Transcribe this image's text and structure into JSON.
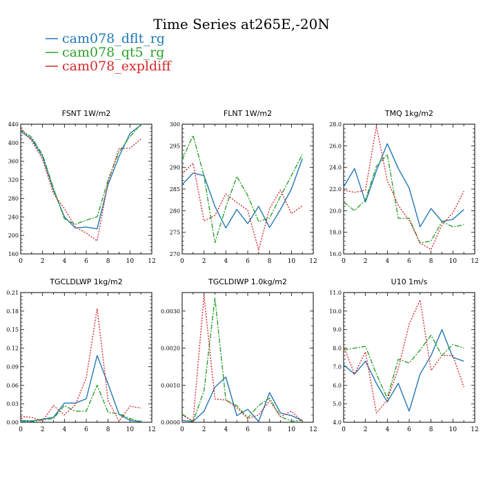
{
  "figure": {
    "title": "Time Series at265E,-20N",
    "legend": [
      {
        "name": "cam078_dflt_rg",
        "color": "#1f77b4",
        "dash": "solid"
      },
      {
        "name": "cam078_qt5_rg",
        "color": "#2ca02c",
        "dash": "dashdot"
      },
      {
        "name": "cam078_expldiff",
        "color": "#d62728",
        "dash": "dotted"
      }
    ]
  },
  "chart_data": [
    {
      "type": "line",
      "title": "FSNT   1W/m2",
      "x": [
        0,
        1,
        2,
        3,
        4,
        5,
        6,
        7,
        8,
        9,
        10,
        11
      ],
      "xlim": [
        0,
        12
      ],
      "xticks": [
        "0",
        "2",
        "4",
        "6",
        "8",
        "10",
        "12"
      ],
      "ylim": [
        160,
        440
      ],
      "yticks": [
        "160",
        "200",
        "240",
        "280",
        "320",
        "360",
        "400",
        "440"
      ],
      "series": [
        {
          "name": "cam078_dflt_rg",
          "values": [
            424,
            408,
            370,
            298,
            240,
            216,
            218,
            214,
            310,
            370,
            420,
            438
          ]
        },
        {
          "name": "cam078_qt5_rg",
          "values": [
            428,
            412,
            374,
            302,
            236,
            224,
            233,
            240,
            320,
            380,
            413,
            440
          ]
        },
        {
          "name": "cam078_expldiff",
          "values": [
            432,
            404,
            364,
            290,
            258,
            218,
            205,
            188,
            315,
            388,
            388,
            408
          ]
        }
      ]
    },
    {
      "type": "line",
      "title": "FLNT   1W/m2",
      "x": [
        0,
        1,
        2,
        3,
        4,
        5,
        6,
        7,
        8,
        9,
        10,
        11
      ],
      "xlim": [
        0,
        12
      ],
      "xticks": [
        "0",
        "2",
        "4",
        "6",
        "8",
        "10",
        "12"
      ],
      "ylim": [
        270,
        300
      ],
      "yticks": [
        "270",
        "275",
        "280",
        "285",
        "290",
        "295",
        "300"
      ],
      "series": [
        {
          "name": "cam078_dflt_rg",
          "values": [
            286,
            288.7,
            288.1,
            281,
            276,
            280.3,
            277,
            281,
            276.1,
            280.3,
            285,
            292
          ]
        },
        {
          "name": "cam078_qt5_rg",
          "values": [
            291.8,
            297.4,
            288,
            272.6,
            280.8,
            287.9,
            283.5,
            277.5,
            278.3,
            283.3,
            288.1,
            293
          ]
        },
        {
          "name": "cam078_expldiff",
          "values": [
            288.5,
            291,
            277.6,
            278.9,
            283.9,
            281.9,
            280.1,
            270.9,
            280.5,
            284.8,
            279.3,
            281.1
          ]
        }
      ]
    },
    {
      "type": "line",
      "title": "TMQ   1kg/m2",
      "x": [
        0,
        1,
        2,
        3,
        4,
        5,
        6,
        7,
        8,
        9,
        10,
        11
      ],
      "xlim": [
        0,
        12
      ],
      "xticks": [
        "0",
        "2",
        "4",
        "6",
        "8",
        "10",
        "12"
      ],
      "ylim": [
        16.0,
        28.0
      ],
      "yticks": [
        "16.0",
        "18.0",
        "20.0",
        "22.0",
        "24.0",
        "26.0",
        "28.0"
      ],
      "series": [
        {
          "name": "cam078_dflt_rg",
          "values": [
            22.2,
            23.9,
            20.8,
            23.7,
            26.2,
            23.9,
            22.1,
            18.5,
            20.2,
            19.0,
            19.2,
            20.1
          ]
        },
        {
          "name": "cam078_qt5_rg",
          "values": [
            20.8,
            20.0,
            21.0,
            24.1,
            25.2,
            19.3,
            19.3,
            17.0,
            17.2,
            19.0,
            18.5,
            18.7
          ]
        },
        {
          "name": "cam078_expldiff",
          "values": [
            21.9,
            21.7,
            21.9,
            27.8,
            22.8,
            20.5,
            19.1,
            17.0,
            16.4,
            18.7,
            19.8,
            21.8
          ]
        }
      ]
    },
    {
      "type": "line",
      "title": "TGCLDLWP   1kg/m2",
      "x": [
        0,
        1,
        2,
        3,
        4,
        5,
        6,
        7,
        8,
        9,
        10,
        11
      ],
      "xlim": [
        0,
        12
      ],
      "xticks": [
        "0",
        "2",
        "4",
        "6",
        "8",
        "10",
        "12"
      ],
      "ylim": [
        0.0,
        0.21
      ],
      "yticks": [
        "0.00",
        "0.03",
        "0.06",
        "0.09",
        "0.12",
        "0.15",
        "0.18",
        "0.21"
      ],
      "series": [
        {
          "name": "cam078_dflt_rg",
          "values": [
            0.003,
            0.002,
            0.005,
            0.008,
            0.031,
            0.031,
            0.038,
            0.108,
            0.062,
            0.013,
            0.003,
            0.001
          ]
        },
        {
          "name": "cam078_qt5_rg",
          "values": [
            0.001,
            0.001,
            0.004,
            0.006,
            0.027,
            0.018,
            0.018,
            0.06,
            0.016,
            0.014,
            0.006,
            0.001
          ]
        },
        {
          "name": "cam078_expldiff",
          "values": [
            0.009,
            0.008,
            0.002,
            0.027,
            0.012,
            0.028,
            0.072,
            0.184,
            0.035,
            0.002,
            0.026,
            0.023
          ]
        }
      ]
    },
    {
      "type": "line",
      "title": "TGCLDIWP   1.0kg/m2",
      "x": [
        0,
        1,
        2,
        3,
        4,
        5,
        6,
        7,
        8,
        9,
        10,
        11
      ],
      "xlim": [
        0,
        12
      ],
      "xticks": [
        "0",
        "2",
        "4",
        "6",
        "8",
        "10",
        "12"
      ],
      "ylim": [
        0.0,
        0.0035
      ],
      "yticks": [
        "0.0000",
        "0.0010",
        "0.0020",
        "0.0030"
      ],
      "series": [
        {
          "name": "cam078_dflt_rg",
          "values": [
            5e-05,
            2e-05,
            0.0003,
            0.00095,
            0.00122,
            0.00018,
            0.00035,
            2e-05,
            0.0008,
            0.00025,
            0.00018,
            5e-05
          ]
        },
        {
          "name": "cam078_qt5_rg",
          "values": [
            0.00022,
            2e-05,
            0.00085,
            0.00335,
            0.0006,
            0.00045,
            0.00012,
            0.00045,
            0.00065,
            0.00015,
            3e-05,
            5e-05
          ]
        },
        {
          "name": "cam078_expldiff",
          "values": [
            0.0002,
            2e-05,
            0.00342,
            0.00063,
            0.0006,
            0.0004,
            0.0001,
            0.0002,
            0.00058,
            0.00015,
            0.0003,
            2e-05
          ]
        }
      ]
    },
    {
      "type": "line",
      "title": "U10   1m/s",
      "x": [
        0,
        1,
        2,
        3,
        4,
        5,
        6,
        7,
        8,
        9,
        10,
        11
      ],
      "xlim": [
        0,
        12
      ],
      "xticks": [
        "0",
        "2",
        "4",
        "6",
        "8",
        "10",
        "12"
      ],
      "ylim": [
        4.0,
        11.0
      ],
      "yticks": [
        "4.0",
        "5.0",
        "6.0",
        "7.0",
        "8.0",
        "9.0",
        "10.0",
        "11.0"
      ],
      "series": [
        {
          "name": "cam078_dflt_rg",
          "values": [
            7.1,
            6.6,
            7.3,
            6.1,
            5.1,
            6.1,
            4.6,
            6.6,
            7.6,
            9.0,
            7.5,
            7.3
          ]
        },
        {
          "name": "cam078_qt5_rg",
          "values": [
            7.9,
            8.0,
            8.1,
            6.6,
            5.3,
            7.4,
            7.2,
            7.9,
            8.7,
            7.6,
            8.2,
            8.0
          ]
        },
        {
          "name": "cam078_expldiff",
          "values": [
            8.1,
            6.6,
            7.8,
            4.5,
            5.2,
            6.9,
            9.3,
            10.6,
            6.8,
            7.6,
            7.6,
            5.9
          ]
        }
      ]
    }
  ]
}
